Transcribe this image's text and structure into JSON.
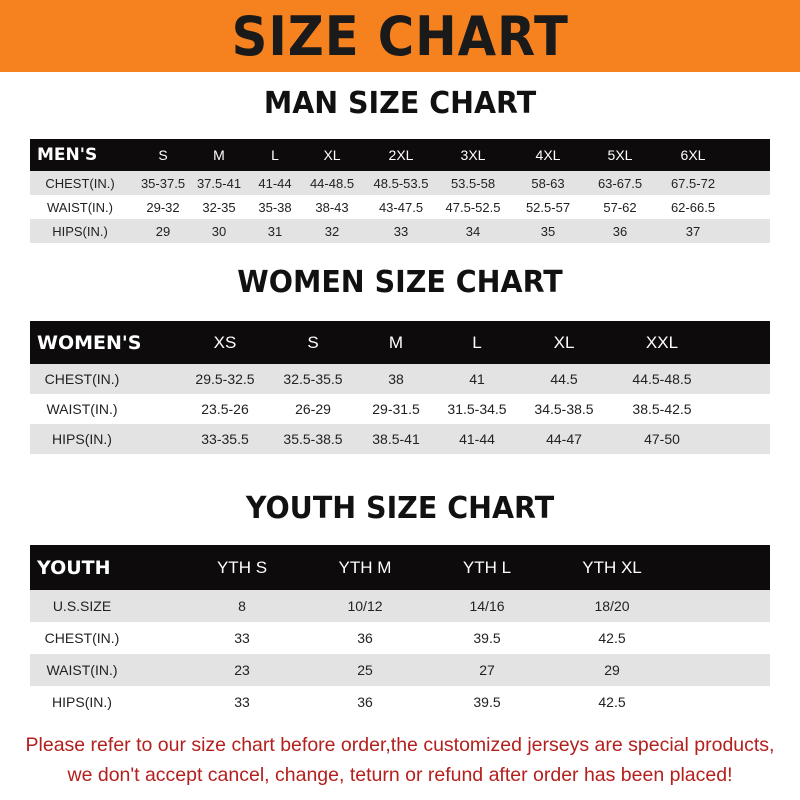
{
  "banner_title": "SIZE CHART",
  "men": {
    "title": "MAN SIZE CHART",
    "header": "MEN'S",
    "sizes": [
      "S",
      "M",
      "L",
      "XL",
      "2XL",
      "3XL",
      "4XL",
      "5XL",
      "6XL"
    ],
    "rows": [
      {
        "label": "CHEST(IN.)",
        "values": [
          "35-37.5",
          "37.5-41",
          "41-44",
          "44-48.5",
          "48.5-53.5",
          "53.5-58",
          "58-63",
          "63-67.5",
          "67.5-72"
        ]
      },
      {
        "label": "WAIST(IN.)",
        "values": [
          "29-32",
          "32-35",
          "35-38",
          "38-43",
          "43-47.5",
          "47.5-52.5",
          "52.5-57",
          "57-62",
          "62-66.5"
        ]
      },
      {
        "label": "HIPS(IN.)",
        "values": [
          "29",
          "30",
          "31",
          "32",
          "33",
          "34",
          "35",
          "36",
          "37"
        ]
      }
    ]
  },
  "women": {
    "title": "WOMEN SIZE CHART",
    "header": "WOMEN'S",
    "sizes": [
      "XS",
      "S",
      "M",
      "L",
      "XL",
      "XXL"
    ],
    "rows": [
      {
        "label": "CHEST(IN.)",
        "values": [
          "29.5-32.5",
          "32.5-35.5",
          "38",
          "41",
          "44.5",
          "44.5-48.5"
        ]
      },
      {
        "label": "WAIST(IN.)",
        "values": [
          "23.5-26",
          "26-29",
          "29-31.5",
          "31.5-34.5",
          "34.5-38.5",
          "38.5-42.5"
        ]
      },
      {
        "label": "HIPS(IN.)",
        "values": [
          "33-35.5",
          "35.5-38.5",
          "38.5-41",
          "41-44",
          "44-47",
          "47-50"
        ]
      }
    ]
  },
  "youth": {
    "title": "YOUTH SIZE CHART",
    "header": "YOUTH",
    "sizes": [
      "YTH S",
      "YTH M",
      "YTH L",
      "YTH XL"
    ],
    "rows": [
      {
        "label": "U.S.SIZE",
        "values": [
          "8",
          "10/12",
          "14/16",
          "18/20"
        ]
      },
      {
        "label": "CHEST(IN.)",
        "values": [
          "33",
          "36",
          "39.5",
          "42.5"
        ]
      },
      {
        "label": "WAIST(IN.)",
        "values": [
          "23",
          "25",
          "27",
          "29"
        ]
      },
      {
        "label": "HIPS(IN.)",
        "values": [
          "33",
          "36",
          "39.5",
          "42.5"
        ]
      }
    ]
  },
  "footer": {
    "line1": "Please refer to our size chart before order,the customized jerseys are special products,",
    "line2": "we don't accept cancel, change, teturn or refund after order has been placed!"
  },
  "colors": {
    "banner": "#f5821f",
    "header_row": "#0d0b0b",
    "stripe": "#e3e3e3",
    "footer_text": "#b3201d"
  }
}
